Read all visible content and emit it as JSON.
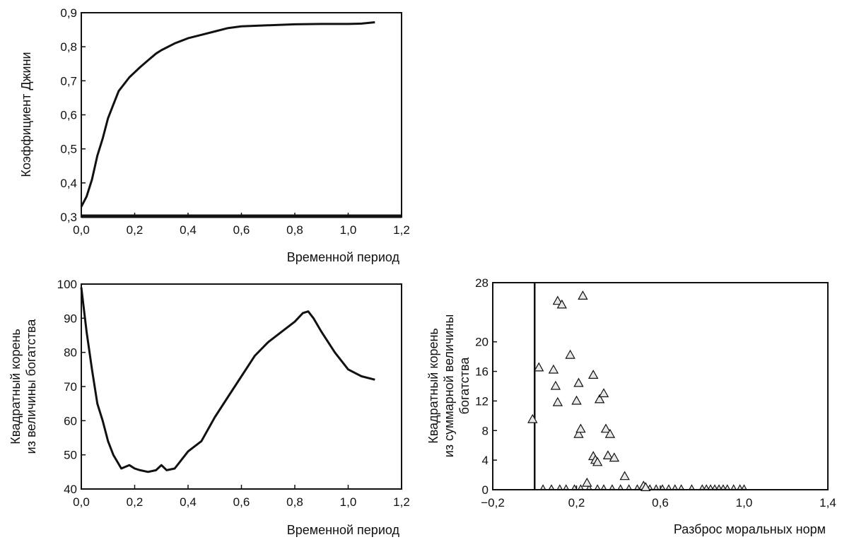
{
  "chart_data": [
    {
      "type": "line",
      "xlabel": "Временной период",
      "ylabel": "Коэффициент Джини",
      "xlim": [
        0,
        1.2
      ],
      "ylim": [
        0.3,
        0.9
      ],
      "xticks": [
        "0,0",
        "0,2",
        "0,4",
        "0,6",
        "0,8",
        "1,0",
        "1,2"
      ],
      "yticks": [
        "0,3",
        "0,4",
        "0,5",
        "0,6",
        "0,7",
        "0,8",
        "0,9"
      ],
      "grid": false,
      "series": [
        {
          "x": [
            0.0,
            0.02,
            0.04,
            0.06,
            0.08,
            0.1,
            0.12,
            0.14,
            0.16,
            0.18,
            0.2,
            0.22,
            0.25,
            0.28,
            0.3,
            0.35,
            0.4,
            0.45,
            0.5,
            0.55,
            0.6,
            0.7,
            0.8,
            0.9,
            1.0,
            1.05,
            1.1
          ],
          "y": [
            0.33,
            0.36,
            0.41,
            0.48,
            0.53,
            0.59,
            0.63,
            0.67,
            0.69,
            0.71,
            0.725,
            0.74,
            0.76,
            0.78,
            0.79,
            0.81,
            0.825,
            0.835,
            0.845,
            0.855,
            0.86,
            0.863,
            0.866,
            0.867,
            0.867,
            0.868,
            0.872
          ]
        }
      ]
    },
    {
      "type": "line",
      "xlabel": "Временной период",
      "ylabel": "Квадратный корень из величины богатства",
      "ylabel_lines": [
        "Квадратный корень",
        "из  величины богатства"
      ],
      "xlim": [
        0,
        1.2
      ],
      "ylim": [
        40,
        100
      ],
      "xticks": [
        "0,0",
        "0,2",
        "0,4",
        "0,6",
        "0,8",
        "1,0",
        "1,2"
      ],
      "yticks": [
        "40",
        "50",
        "60",
        "70",
        "80",
        "90",
        "100"
      ],
      "grid": false,
      "series": [
        {
          "x": [
            0.0,
            0.02,
            0.04,
            0.06,
            0.08,
            0.1,
            0.12,
            0.15,
            0.18,
            0.2,
            0.22,
            0.25,
            0.28,
            0.3,
            0.32,
            0.35,
            0.4,
            0.45,
            0.5,
            0.55,
            0.6,
            0.65,
            0.7,
            0.75,
            0.8,
            0.83,
            0.85,
            0.87,
            0.9,
            0.95,
            1.0,
            1.05,
            1.1
          ],
          "y": [
            99,
            86,
            75,
            65,
            60,
            54,
            50,
            46,
            47,
            46,
            45.5,
            45,
            45.5,
            47,
            45.5,
            46,
            51,
            54,
            61,
            67,
            73,
            79,
            83,
            86,
            89,
            91.5,
            92,
            90,
            86,
            80,
            75,
            73,
            72
          ]
        }
      ]
    },
    {
      "type": "scatter",
      "xlabel": "Разброс моральных норм",
      "ylabel": "Квадратный корень из суммарной величины богатства",
      "ylabel_lines": [
        "Квадратный корень",
        "из суммарной величины",
        "богатства"
      ],
      "xlim": [
        -0.2,
        1.4
      ],
      "ylim": [
        0,
        28
      ],
      "xticks": [
        "−0,2",
        "0,2",
        "0,6",
        "1,0",
        "1,4"
      ],
      "yticks": [
        "0",
        "4",
        "8",
        "12",
        "16",
        "20",
        "28"
      ],
      "grid": false,
      "marker": "open-triangle",
      "vertical_line_x": 0.0,
      "points": [
        [
          -0.01,
          9.5
        ],
        [
          0.02,
          16.5
        ],
        [
          0.09,
          16.2
        ],
        [
          0.1,
          14
        ],
        [
          0.11,
          11.8
        ],
        [
          0.11,
          25.5
        ],
        [
          0.13,
          25
        ],
        [
          0.17,
          18.2
        ],
        [
          0.2,
          12
        ],
        [
          0.21,
          14.4
        ],
        [
          0.21,
          7.5
        ],
        [
          0.22,
          8.2
        ],
        [
          0.23,
          26.2
        ],
        [
          0.25,
          0.9
        ],
        [
          0.28,
          15.5
        ],
        [
          0.28,
          4.5
        ],
        [
          0.29,
          4.0
        ],
        [
          0.3,
          3.7
        ],
        [
          0.31,
          12.2
        ],
        [
          0.33,
          13
        ],
        [
          0.34,
          8.2
        ],
        [
          0.35,
          4.6
        ],
        [
          0.36,
          7.5
        ],
        [
          0.38,
          4.3
        ],
        [
          0.43,
          1.8
        ],
        [
          0.52,
          0.5
        ],
        [
          0.53,
          0.3
        ]
      ],
      "baseline_points_x": [
        0.04,
        0.08,
        0.12,
        0.15,
        0.19,
        0.22,
        0.26,
        0.3,
        0.33,
        0.37,
        0.41,
        0.45,
        0.49,
        0.55,
        0.58,
        0.61,
        0.64,
        0.67,
        0.7,
        0.75,
        0.8,
        0.82,
        0.84,
        0.86,
        0.88,
        0.9,
        0.92,
        0.95,
        0.98,
        1.0
      ]
    }
  ]
}
